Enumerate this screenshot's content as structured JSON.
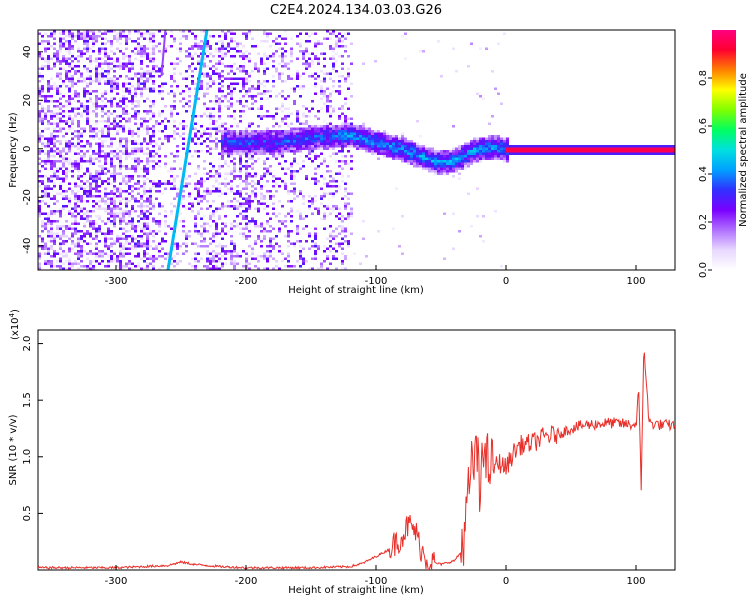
{
  "title": "C2E4.2024.134.03.03.G26",
  "colors": {
    "snr_line": "#e8302a",
    "colormap": [
      "#ffffff",
      "#e8d8ff",
      "#b070ff",
      "#7a00ff",
      "#3030ff",
      "#00a0ff",
      "#00e0e0",
      "#00ff60",
      "#80ff00",
      "#ffff00",
      "#ff8000",
      "#ff0030",
      "#ff0080"
    ]
  },
  "chart_data": [
    {
      "type": "heatmap",
      "xlabel": "Height of straight line (km)",
      "ylabel": "Frequency (Hz)",
      "xlim": [
        -360,
        130
      ],
      "ylim": [
        -50,
        49
      ],
      "xticks": [
        -300,
        -200,
        -100,
        0,
        100
      ],
      "yticks": [
        -40,
        -20,
        0,
        20,
        40
      ],
      "colorbar": {
        "label": "Normalized spectral amplitude",
        "range": [
          0.0,
          1.0
        ],
        "ticks": [
          0.0,
          0.2,
          0.4,
          0.6,
          0.8
        ]
      },
      "features": {
        "carrier": {
          "x_start": 0,
          "x_end": 130,
          "freq": 0,
          "amplitude": 0.95
        },
        "diagonal_line": {
          "from": [
            -260,
            -50
          ],
          "to": [
            -230,
            49
          ],
          "amplitude": 0.45
        },
        "secondary_line": {
          "from": [
            -265,
            30
          ],
          "to": [
            -262,
            49
          ],
          "amplitude": 0.2
        },
        "wandering_track": [
          [
            -220,
            3
          ],
          [
            -180,
            3
          ],
          [
            -150,
            5
          ],
          [
            -120,
            6
          ],
          [
            -100,
            3
          ],
          [
            -80,
            0
          ],
          [
            -65,
            -3
          ],
          [
            -55,
            -5
          ],
          [
            -45,
            -5
          ],
          [
            -35,
            -3
          ],
          [
            -25,
            0
          ],
          [
            -10,
            1
          ],
          [
            0,
            0
          ]
        ],
        "noise_band": [
          -360,
          -120
        ]
      }
    },
    {
      "type": "line",
      "xlabel": "Height of straight line (km)",
      "ylabel": "SNR (10 * v/v)",
      "y_multiplier": "(x10",
      "y_multiplier_exp": "4",
      "y_multiplier_close": ")",
      "xlim": [
        -360,
        130
      ],
      "ylim": [
        0,
        2.12
      ],
      "xticks": [
        -300,
        -200,
        -100,
        0,
        100
      ],
      "yticks": [
        0.5,
        1.0,
        1.5,
        2.0
      ],
      "ytick_labels": [
        "0.5",
        "1.0",
        "1.5",
        "2.0"
      ],
      "series": [
        {
          "x": [
            -360,
            -300,
            -260,
            -250,
            -240,
            -220,
            -200,
            -150,
            -120,
            -110,
            -100,
            -90,
            -80,
            -75,
            -70,
            -65,
            -60,
            -50,
            -40,
            -35,
            -30,
            -28,
            -25,
            -22,
            -20,
            -18,
            -16,
            -14,
            -10,
            -5,
            0,
            5,
            10,
            20,
            30,
            40,
            50,
            60,
            80,
            100,
            102,
            104,
            106,
            110,
            120,
            130
          ],
          "y": [
            0.02,
            0.02,
            0.04,
            0.07,
            0.05,
            0.03,
            0.02,
            0.02,
            0.03,
            0.06,
            0.12,
            0.18,
            0.3,
            0.4,
            0.35,
            0.18,
            0.08,
            0.05,
            0.08,
            0.15,
            0.5,
            0.8,
            0.95,
            1.02,
            0.55,
            1.3,
            0.9,
            0.95,
            0.9,
            0.95,
            0.9,
            1.02,
            1.1,
            1.12,
            1.18,
            1.2,
            1.25,
            1.28,
            1.3,
            1.28,
            1.6,
            0.72,
            2.0,
            1.3,
            1.28,
            1.28
          ],
          "noisy": true
        }
      ]
    }
  ]
}
